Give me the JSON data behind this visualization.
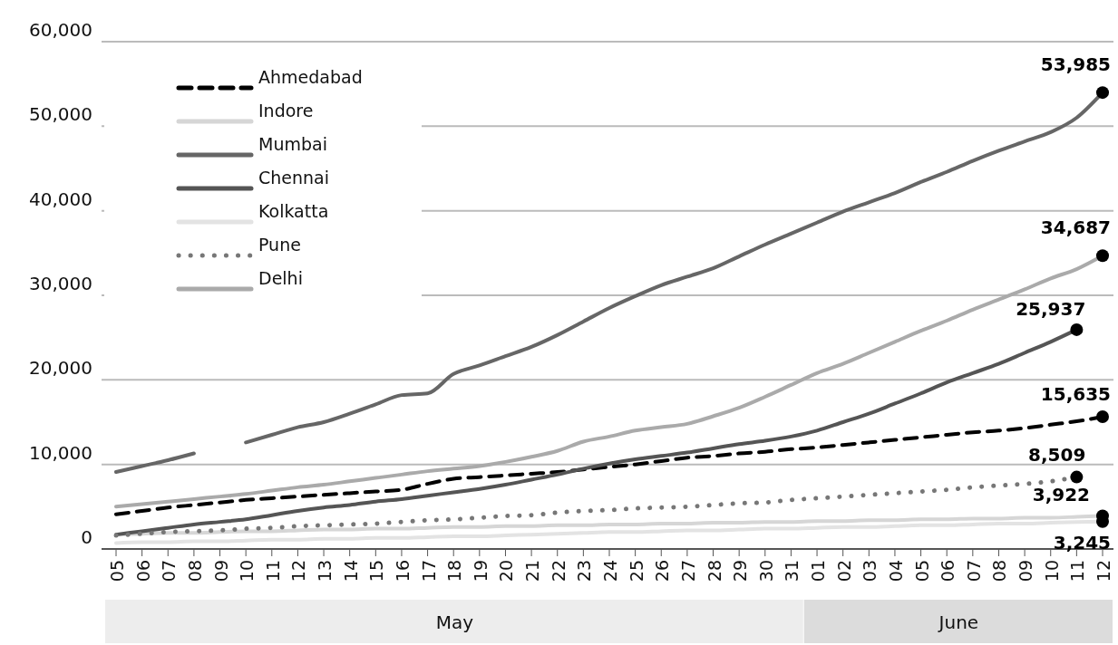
{
  "chart_data": {
    "type": "line",
    "categories": [
      "05",
      "06",
      "07",
      "08",
      "09",
      "10",
      "11",
      "12",
      "13",
      "14",
      "15",
      "16",
      "17",
      "18",
      "19",
      "20",
      "21",
      "22",
      "23",
      "24",
      "25",
      "26",
      "27",
      "28",
      "29",
      "30",
      "31",
      "01",
      "02",
      "03",
      "04",
      "05",
      "06",
      "07",
      "08",
      "09",
      "10",
      "11",
      "12"
    ],
    "series": [
      {
        "name": "Ahmedabad",
        "color": "#000000",
        "line_style": "dashed",
        "values": [
          4100,
          4500,
          4900,
          5200,
          5500,
          5800,
          6000,
          6200,
          6400,
          6600,
          6800,
          7000,
          7700,
          8300,
          8500,
          8700,
          8900,
          9100,
          9400,
          9700,
          10000,
          10400,
          10800,
          11000,
          11300,
          11500,
          11800,
          12000,
          12300,
          12600,
          12900,
          13200,
          13500,
          13800,
          14000,
          14300,
          14700,
          15100,
          15635
        ],
        "value_labels": [
          null,
          null,
          null,
          null,
          null,
          null,
          null,
          null,
          null,
          null,
          null,
          null,
          null,
          null,
          null,
          null,
          null,
          null,
          null,
          null,
          null,
          null,
          null,
          null,
          null,
          null,
          null,
          null,
          null,
          null,
          null,
          null,
          null,
          null,
          null,
          null,
          null,
          null,
          "15,635"
        ]
      },
      {
        "name": "Indore",
        "color": "#d6d6d6",
        "line_style": "solid",
        "values": [
          1700,
          1800,
          1900,
          1900,
          2000,
          2100,
          2100,
          2200,
          2300,
          2300,
          2400,
          2400,
          2500,
          2600,
          2600,
          2700,
          2700,
          2800,
          2800,
          2900,
          2900,
          3000,
          3000,
          3100,
          3100,
          3200,
          3200,
          3300,
          3300,
          3400,
          3400,
          3500,
          3500,
          3600,
          3600,
          3700,
          3700,
          3800,
          3922
        ],
        "value_labels": [
          null,
          null,
          null,
          null,
          null,
          null,
          null,
          null,
          null,
          null,
          null,
          null,
          null,
          null,
          null,
          null,
          null,
          null,
          null,
          null,
          null,
          null,
          null,
          null,
          null,
          null,
          null,
          null,
          null,
          null,
          null,
          null,
          null,
          null,
          null,
          null,
          null,
          null,
          "3,922"
        ]
      },
      {
        "name": "Mumbai",
        "color": "#666666",
        "line_style": "solid",
        "values": [
          9100,
          9800,
          10500,
          11300,
          null,
          12600,
          13500,
          14400,
          15000,
          16000,
          17100,
          18200,
          18400,
          20700,
          21700,
          22800,
          23900,
          25300,
          26900,
          28500,
          29900,
          31200,
          32200,
          33200,
          34600,
          36000,
          37300,
          38600,
          39900,
          41000,
          42100,
          43400,
          44600,
          45900,
          47100,
          48200,
          49300,
          51000,
          53985
        ],
        "value_labels": [
          null,
          null,
          null,
          null,
          null,
          null,
          null,
          null,
          null,
          null,
          null,
          null,
          null,
          null,
          null,
          null,
          null,
          null,
          null,
          null,
          null,
          null,
          null,
          null,
          null,
          null,
          null,
          null,
          null,
          null,
          null,
          null,
          null,
          null,
          null,
          null,
          null,
          null,
          "53,985"
        ]
      },
      {
        "name": "Chennai",
        "color": "#555555",
        "line_style": "solid",
        "values": [
          1700,
          2100,
          2500,
          2900,
          3200,
          3500,
          4000,
          4500,
          4900,
          5200,
          5600,
          5900,
          6300,
          6700,
          7100,
          7600,
          8200,
          8800,
          9500,
          10100,
          10600,
          11000,
          11400,
          11900,
          12400,
          12800,
          13300,
          14000,
          15000,
          16000,
          17200,
          18400,
          19700,
          20800,
          21900,
          23200,
          24500,
          25937,
          null
        ],
        "value_labels": [
          null,
          null,
          null,
          null,
          null,
          null,
          null,
          null,
          null,
          null,
          null,
          null,
          null,
          null,
          null,
          null,
          null,
          null,
          null,
          null,
          null,
          null,
          null,
          null,
          null,
          null,
          null,
          null,
          null,
          null,
          null,
          null,
          null,
          null,
          null,
          null,
          null,
          "25,937",
          null
        ]
      },
      {
        "name": "Kolkatta",
        "color": "#e3e3e3",
        "line_style": "solid",
        "values": [
          700,
          800,
          800,
          900,
          900,
          1000,
          1100,
          1100,
          1200,
          1200,
          1300,
          1300,
          1400,
          1500,
          1500,
          1600,
          1700,
          1800,
          1900,
          2000,
          2000,
          2100,
          2200,
          2200,
          2300,
          2400,
          2400,
          2500,
          2600,
          2600,
          2700,
          2800,
          2800,
          2900,
          3000,
          3000,
          3100,
          3200,
          3245
        ],
        "value_labels": [
          null,
          null,
          null,
          null,
          null,
          null,
          null,
          null,
          null,
          null,
          null,
          null,
          null,
          null,
          null,
          null,
          null,
          null,
          null,
          null,
          null,
          null,
          null,
          null,
          null,
          null,
          null,
          null,
          null,
          null,
          null,
          null,
          null,
          null,
          null,
          null,
          null,
          null,
          "3,245"
        ]
      },
      {
        "name": "Pune",
        "color": "#777777",
        "line_style": "dotted",
        "values": [
          1600,
          1800,
          2000,
          2100,
          2200,
          2400,
          2500,
          2700,
          2800,
          2900,
          3000,
          3200,
          3400,
          3500,
          3700,
          3900,
          4000,
          4300,
          4500,
          4600,
          4800,
          4900,
          5000,
          5200,
          5400,
          5500,
          5800,
          6000,
          6200,
          6400,
          6600,
          6800,
          7000,
          7300,
          7500,
          7700,
          8000,
          8509,
          null
        ],
        "value_labels": [
          null,
          null,
          null,
          null,
          null,
          null,
          null,
          null,
          null,
          null,
          null,
          null,
          null,
          null,
          null,
          null,
          null,
          null,
          null,
          null,
          null,
          null,
          null,
          null,
          null,
          null,
          null,
          null,
          null,
          null,
          null,
          null,
          null,
          null,
          null,
          null,
          null,
          "8,509",
          null
        ]
      },
      {
        "name": "Delhi",
        "color": "#aaaaaa",
        "line_style": "solid",
        "values": [
          5000,
          5300,
          5600,
          5900,
          6200,
          6500,
          6900,
          7300,
          7600,
          8000,
          8400,
          8800,
          9200,
          9500,
          9800,
          10300,
          10900,
          11600,
          12700,
          13300,
          14000,
          14400,
          14800,
          15700,
          16700,
          18000,
          19400,
          20800,
          21900,
          23200,
          24500,
          25800,
          27000,
          28300,
          29500,
          30700,
          32000,
          33100,
          34687
        ],
        "value_labels": [
          null,
          null,
          null,
          null,
          null,
          null,
          null,
          null,
          null,
          null,
          null,
          null,
          null,
          null,
          null,
          null,
          null,
          null,
          null,
          null,
          null,
          null,
          null,
          null,
          null,
          null,
          null,
          null,
          null,
          null,
          null,
          null,
          null,
          null,
          null,
          null,
          null,
          null,
          "34,687"
        ]
      }
    ],
    "ylim": [
      0,
      60000
    ],
    "yticks": [
      {
        "value": 0,
        "label": "0"
      },
      {
        "value": 10000,
        "label": "10,000"
      },
      {
        "value": 20000,
        "label": "20,000"
      },
      {
        "value": 30000,
        "label": "30,000"
      },
      {
        "value": 40000,
        "label": "40,000"
      },
      {
        "value": 50000,
        "label": "50,000"
      },
      {
        "value": 60000,
        "label": "60,000"
      }
    ],
    "grid": "y",
    "legend": "top left",
    "annotations": [
      "May",
      "June"
    ]
  }
}
